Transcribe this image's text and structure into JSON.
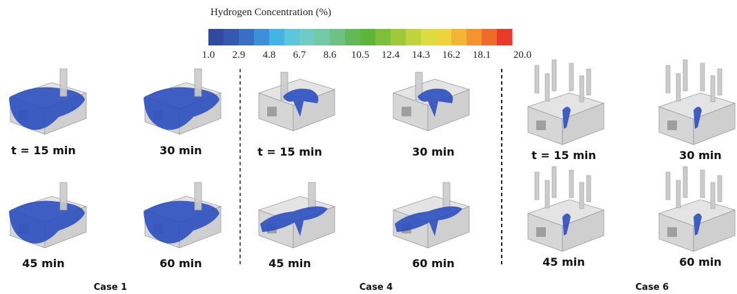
{
  "colorbar": {
    "title": "Hydrogen Concentration (%)",
    "ticks": [
      "1.0",
      "2.9",
      "4.8",
      "6.7",
      "8.6",
      "10.5",
      "12.4",
      "14.3",
      "16.2",
      "18.1",
      "20.0"
    ],
    "colors": [
      "#2f4a9e",
      "#3559b0",
      "#3b6fc4",
      "#3f8fd8",
      "#45b3e3",
      "#5cc6dd",
      "#6fcbc4",
      "#74c8a6",
      "#6fc083",
      "#63b85a",
      "#5db53a",
      "#7dbf3a",
      "#9ec93a",
      "#c0d33d",
      "#dcdc40",
      "#eed33c",
      "#f2b634",
      "#f2952f",
      "#ee6b2c",
      "#e83a2a"
    ]
  },
  "cases": [
    {
      "label": "Case 1",
      "panels": [
        "t = 15 min",
        "30 min",
        "45 min",
        "60 min"
      ]
    },
    {
      "label": "Case 4",
      "panels": [
        "t = 15 min",
        "30 min",
        "45 min",
        "60 min"
      ]
    },
    {
      "label": "Case 6",
      "panels": [
        "t = 15 min",
        "30 min",
        "45 min",
        "60 min"
      ]
    }
  ]
}
